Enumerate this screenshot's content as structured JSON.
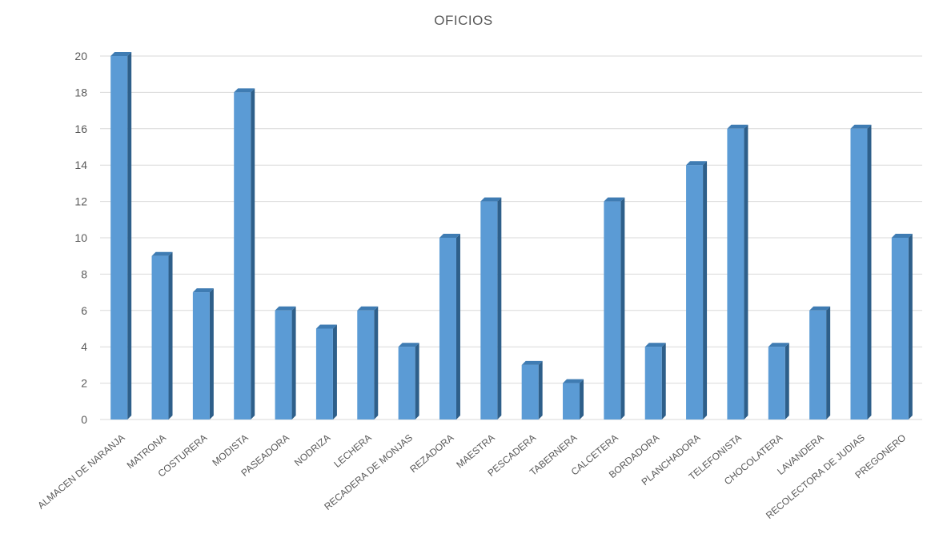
{
  "chart_data": {
    "type": "bar",
    "title": "OFICIOS",
    "xlabel": "",
    "ylabel": "",
    "ylim": [
      0,
      20
    ],
    "yticks": [
      0,
      2,
      4,
      6,
      8,
      10,
      12,
      14,
      16,
      18,
      20
    ],
    "grid": true,
    "legend": "none",
    "bar_color": "#5b9bd5",
    "categories": [
      "ALMACEN DE NARANJA",
      "MATRONA",
      "COSTURERA",
      "MODISTA",
      "PASEADORA",
      "NODRIZA",
      "LECHERA",
      "RECADERA DE MONJAS",
      "REZADORA",
      "MAESTRA",
      "PESCADERA",
      "TABERNERA",
      "CALCETERA",
      "BORDADORA",
      "PLANCHADORA",
      "TELEFONISTA",
      "CHOCOLATERA",
      "LAVANDERA",
      "RECOLECTORA DE JUDIAS",
      "PREGONERO"
    ],
    "values": [
      20,
      9,
      7,
      18,
      6,
      5,
      6,
      4,
      10,
      12,
      3,
      2,
      12,
      4,
      14,
      16,
      4,
      6,
      16,
      10
    ]
  }
}
